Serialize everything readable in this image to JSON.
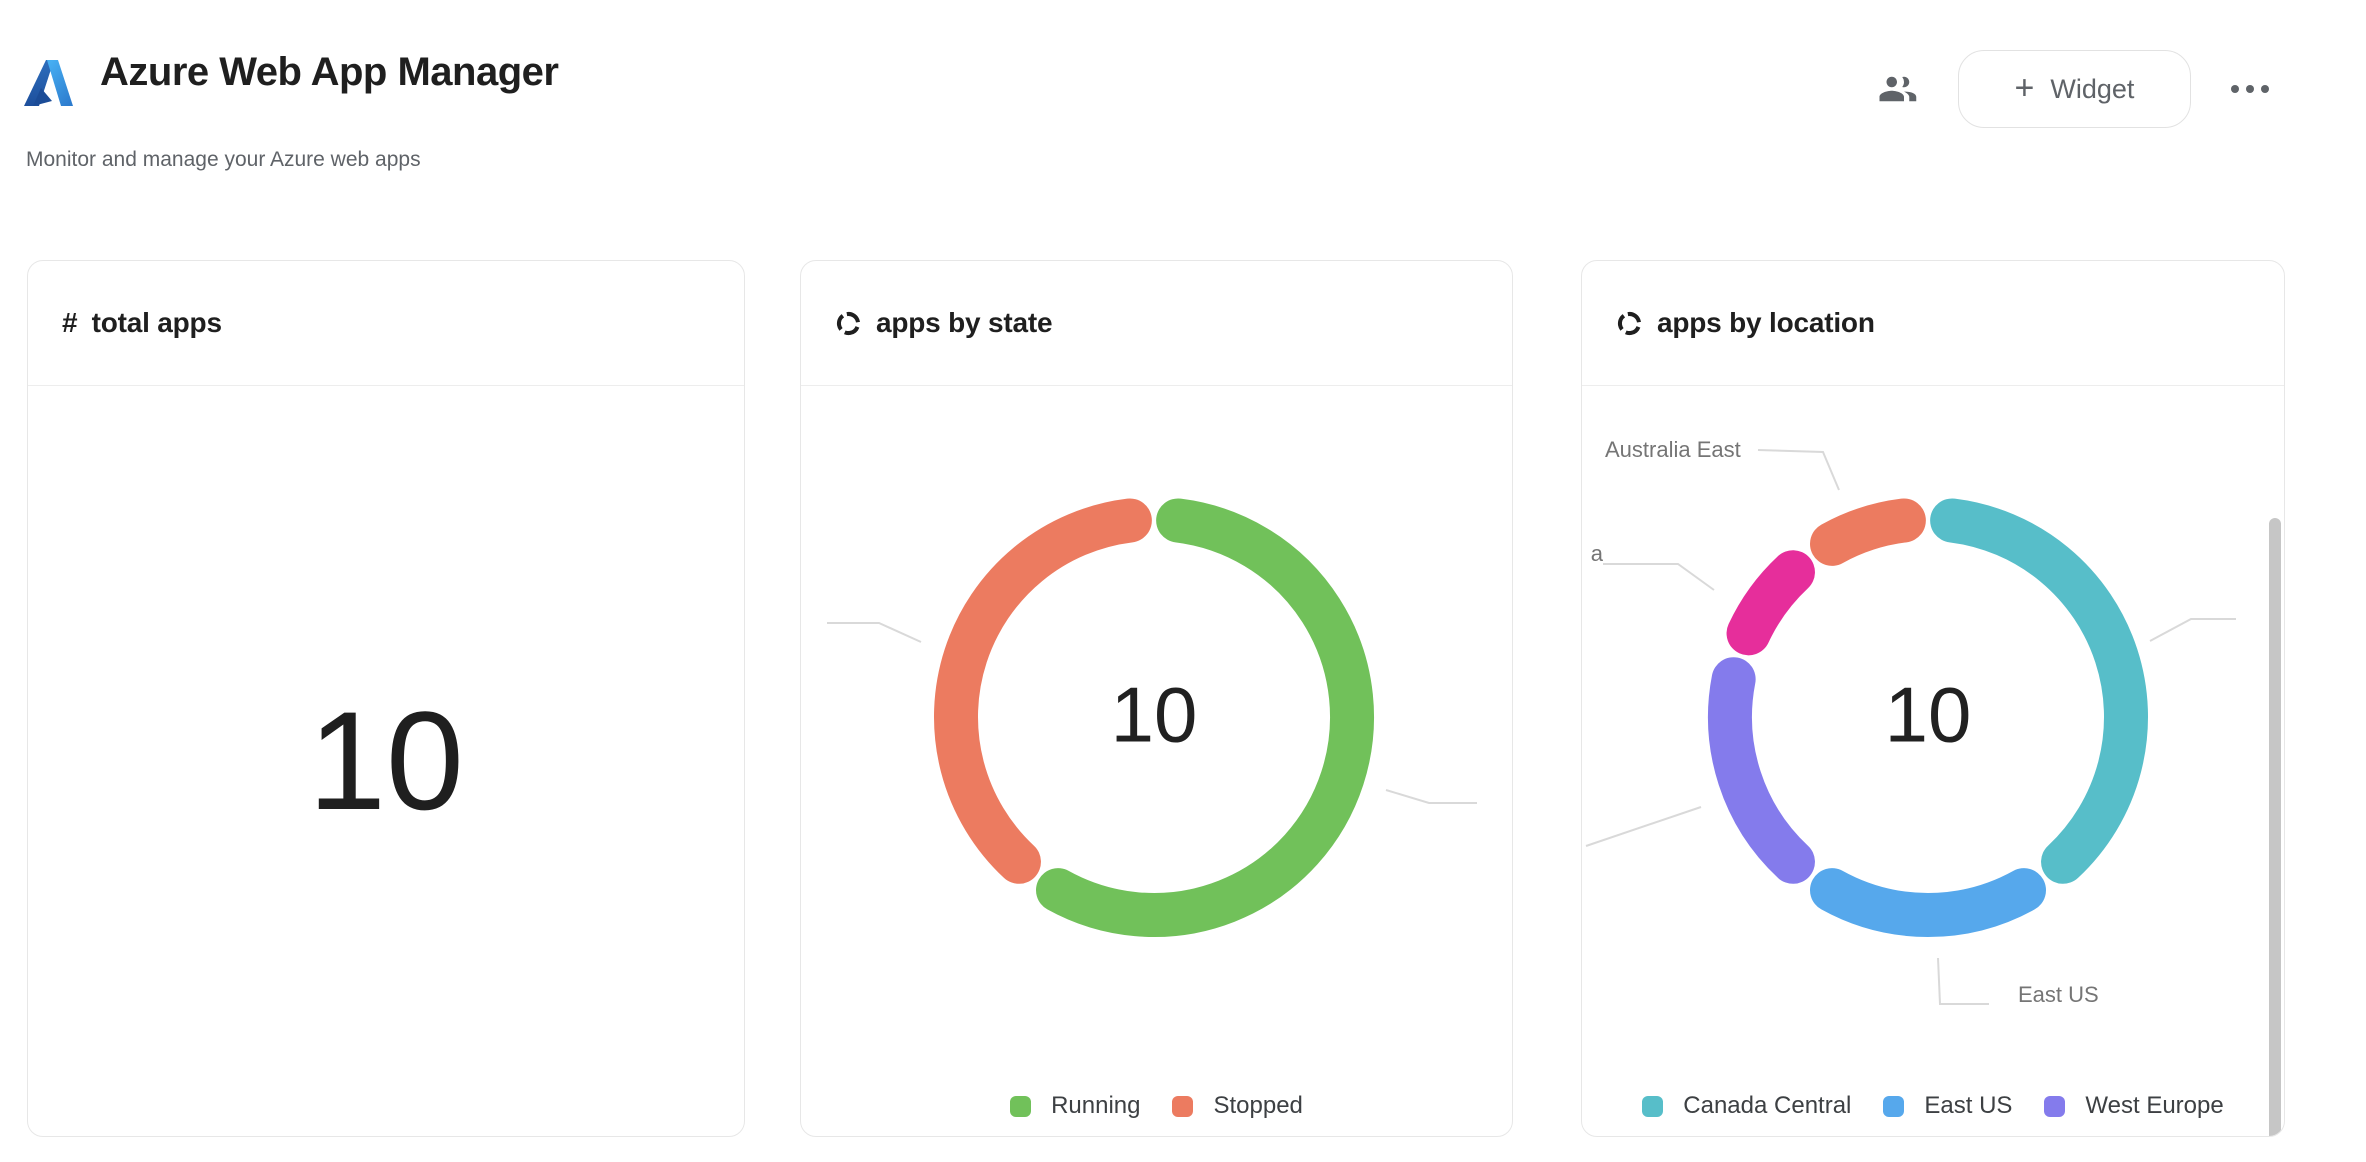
{
  "header": {
    "title": "Azure Web App Manager",
    "subtitle": "Monitor and manage your Azure web apps",
    "widget_button": {
      "plus": "+",
      "label": "Widget"
    }
  },
  "cards": {
    "total_apps": {
      "icon_glyph": "#",
      "title": "total apps",
      "value": "10"
    },
    "apps_by_state": {
      "title": "apps by state"
    },
    "apps_by_location": {
      "title": "apps by location"
    }
  },
  "chart_data": [
    {
      "type": "donut",
      "title": "apps by state",
      "center_label": "10",
      "total": 10,
      "legend_position": "bottom",
      "segments": [
        {
          "label": "Running",
          "value": 6,
          "color": "#71C15A"
        },
        {
          "label": "Stopped",
          "value": 4,
          "color": "#EC7B60"
        }
      ]
    },
    {
      "type": "donut",
      "title": "apps by location",
      "center_label": "10",
      "total": 10,
      "legend_position": "bottom",
      "segments": [
        {
          "label": "Canada Central",
          "value": 4,
          "color": "#57BEC9"
        },
        {
          "label": "East US",
          "value": 2,
          "color": "#56A8EC"
        },
        {
          "label": "West Europe",
          "value": 2,
          "color": "#847BEC"
        },
        {
          "label": "a",
          "label_clipped": true,
          "value": 1,
          "color": "#E62E9B"
        },
        {
          "label": "Australia East",
          "value": 1,
          "color": "#EC7B60"
        }
      ]
    }
  ]
}
